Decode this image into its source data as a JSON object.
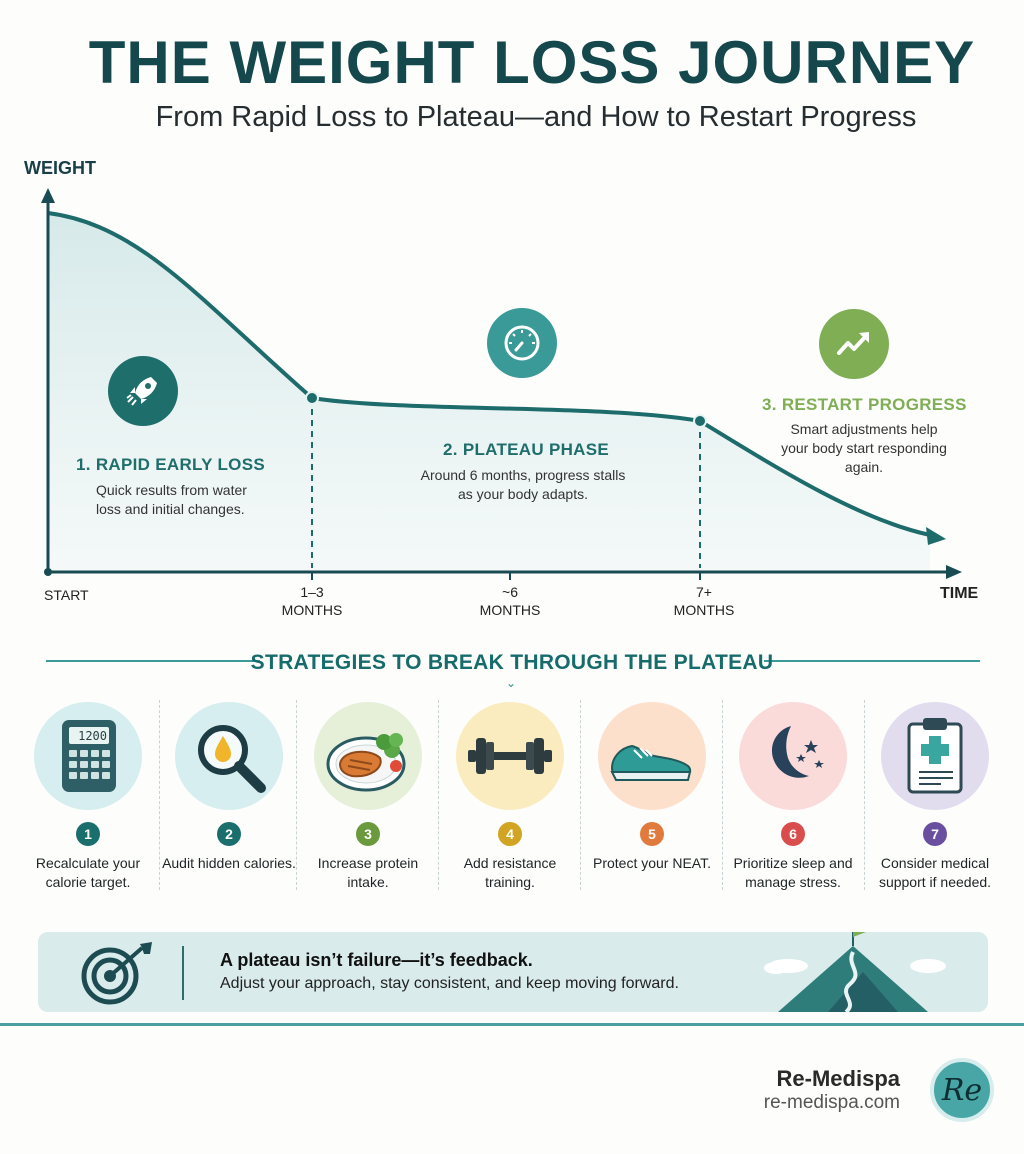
{
  "header": {
    "title": "THE WEIGHT LOSS JOURNEY",
    "subtitle": "From Rapid Loss to Plateau—and How to Restart Progress"
  },
  "chart_data": {
    "type": "area",
    "ylabel": "WEIGHT",
    "xlabel": "TIME",
    "x_ticks": [
      "START",
      "1–3\nMONTHS",
      "~6\nMONTHS",
      "7+\nMONTHS"
    ],
    "stages": [
      {
        "number": "1.",
        "title": "RAPID EARLY LOSS",
        "description": "Quick results from water loss and initial changes.",
        "icon": "rocket-icon",
        "color": "#1e6e6c"
      },
      {
        "number": "2.",
        "title": "PLATEAU PHASE",
        "description": "Around 6 months, progress stalls as your body adapts.",
        "icon": "gauge-icon",
        "color": "#1e6e6c"
      },
      {
        "number": "3.",
        "title": "RESTART PROGRESS",
        "description": "Smart adjustments help your body start responding again.",
        "icon": "trending-up-icon",
        "color": "#7fae55"
      }
    ]
  },
  "strategies": {
    "heading": "STRATEGIES TO BREAK THROUGH THE PLATEAU",
    "items": [
      {
        "num": "1",
        "label": "Recalculate your calorie target.",
        "icon": "calculator-icon",
        "bg": "#d6eeef",
        "numColor": "#1a6f6d",
        "display": "1200"
      },
      {
        "num": "2",
        "label": "Audit hidden calories.",
        "icon": "magnifier-drop-icon",
        "bg": "#d6eeef",
        "numColor": "#1a6f6d"
      },
      {
        "num": "3",
        "label": "Increase protein intake.",
        "icon": "protein-plate-icon",
        "bg": "#e6f0d8",
        "numColor": "#6b9a3e"
      },
      {
        "num": "4",
        "label": "Add resistance training.",
        "icon": "dumbbell-icon",
        "bg": "#fbecc0",
        "numColor": "#d2a423"
      },
      {
        "num": "5",
        "label": "Protect your NEAT.",
        "icon": "sneaker-icon",
        "bg": "#fde0cc",
        "numColor": "#e07a3d"
      },
      {
        "num": "6",
        "label": "Prioritize sleep and manage stress.",
        "icon": "moon-stars-icon",
        "bg": "#fbdada",
        "numColor": "#d94d4d"
      },
      {
        "num": "7",
        "label": "Consider medical support if needed.",
        "icon": "clipboard-medical-icon",
        "bg": "#e2dcef",
        "numColor": "#6a4fa0"
      }
    ]
  },
  "banner": {
    "bold": "A plateau isn’t failure—it’s feedback.",
    "text": "Adjust your approach, stay consistent, and keep moving forward."
  },
  "footer": {
    "brand": "Re-Medispa",
    "url": "re-medispa.com",
    "logo_text": "Re"
  }
}
